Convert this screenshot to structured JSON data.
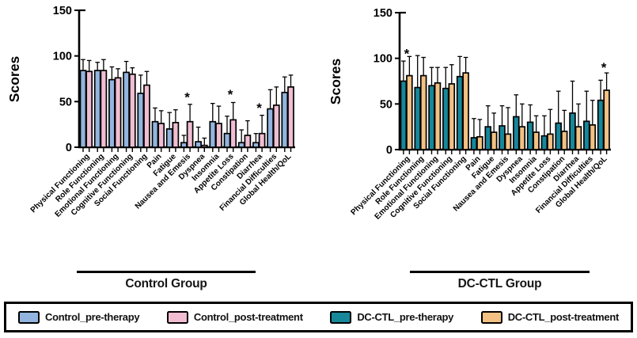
{
  "figure": {
    "background": "#ffffff",
    "axis_color": "#000000"
  },
  "legend": {
    "border_color": "#000000",
    "items": [
      {
        "label": "Control_pre-therapy",
        "color": "#92B4DF"
      },
      {
        "label": "Control_post-treatment",
        "color": "#F0BDD2"
      },
      {
        "label": "DC-CTL_pre-therapy",
        "color": "#17879A"
      },
      {
        "label": "DC-CTL_post-treatment",
        "color": "#F2C183"
      }
    ]
  },
  "chart_data": [
    {
      "type": "bar",
      "group_label": "Control Group",
      "ylabel": "Scores",
      "ylim": [
        0,
        150
      ],
      "yticks": [
        0,
        50,
        100,
        150
      ],
      "grid": false,
      "error_bars": "upper",
      "categories": [
        "Physical Functioning",
        "Role Functioning",
        "Emotional Functioning",
        "Cognitive Functioning",
        "Social Functioning",
        "Pain",
        "Fatigue",
        "Nausea and Emesis",
        "Dyspnea",
        "Insomnia",
        "Appetite Loss",
        "Constipation",
        "Diarrhea",
        "Financial Difficulties",
        "Global Health/QoL"
      ],
      "series": [
        {
          "name": "Control_pre-therapy",
          "color": "#92B4DF",
          "values": [
            84,
            84,
            74,
            82,
            59,
            28,
            20,
            5,
            6,
            28,
            15,
            5,
            5,
            42,
            60
          ],
          "error_tops": [
            96,
            93,
            88,
            94,
            79,
            43,
            38,
            13,
            22,
            48,
            34,
            19,
            15,
            63,
            77
          ]
        },
        {
          "name": "Control_post-treatment",
          "color": "#F0BDD2",
          "values": [
            83,
            84,
            76,
            80,
            68,
            26,
            27,
            28,
            2,
            26,
            30,
            13,
            15,
            46,
            66
          ],
          "error_tops": [
            95,
            96,
            86,
            87,
            83,
            40,
            41,
            47,
            10,
            45,
            49,
            29,
            35,
            66,
            79
          ]
        }
      ],
      "significance_marks": [
        {
          "symbol": "*",
          "category": "Nausea and Emesis",
          "category_index": 7,
          "y_value": 57
        },
        {
          "symbol": "*",
          "category": "Appetite Loss",
          "category_index": 10,
          "y_value": 60
        },
        {
          "symbol": "*",
          "category": "Diarrhea",
          "category_index": 12,
          "y_value": 45
        }
      ]
    },
    {
      "type": "bar",
      "group_label": "DC-CTL Group",
      "ylabel": "Scores",
      "ylim": [
        0,
        150
      ],
      "yticks": [
        0,
        50,
        100,
        150
      ],
      "grid": false,
      "error_bars": "upper",
      "categories": [
        "Physical Functioning",
        "Role Functioning",
        "Emotional Functioning",
        "Cognitive Functioning",
        "Social Functioning",
        "Pain",
        "Fatigue",
        "Nausea and Emesis",
        "Dyspnea",
        "Insomnia",
        "Appetite Loss",
        "Constipation",
        "Diarrhea",
        "Financial Difficulties",
        "Global Health/QoL"
      ],
      "series": [
        {
          "name": "DC-CTL_pre-therapy",
          "color": "#17879A",
          "values": [
            75,
            68,
            70,
            67,
            80,
            13,
            25,
            26,
            36,
            30,
            15,
            29,
            40,
            31,
            54
          ],
          "error_tops": [
            97,
            103,
            90,
            90,
            102,
            34,
            48,
            48,
            60,
            49,
            37,
            64,
            75,
            64,
            76
          ]
        },
        {
          "name": "DC-CTL_post-treatment",
          "color": "#F2C183",
          "values": [
            81,
            81,
            73,
            72,
            84,
            14,
            19,
            17,
            25,
            19,
            17,
            20,
            25,
            27,
            65
          ],
          "error_tops": [
            102,
            101,
            90,
            93,
            101,
            33,
            40,
            46,
            50,
            37,
            44,
            43,
            50,
            54,
            84
          ]
        }
      ],
      "significance_marks": [
        {
          "symbol": "*",
          "category": "Physical Functioning",
          "category_index": 0,
          "y_value": 107
        },
        {
          "symbol": "*",
          "category": "Global Health/QoL",
          "category_index": 14,
          "y_value": 92
        }
      ]
    }
  ]
}
